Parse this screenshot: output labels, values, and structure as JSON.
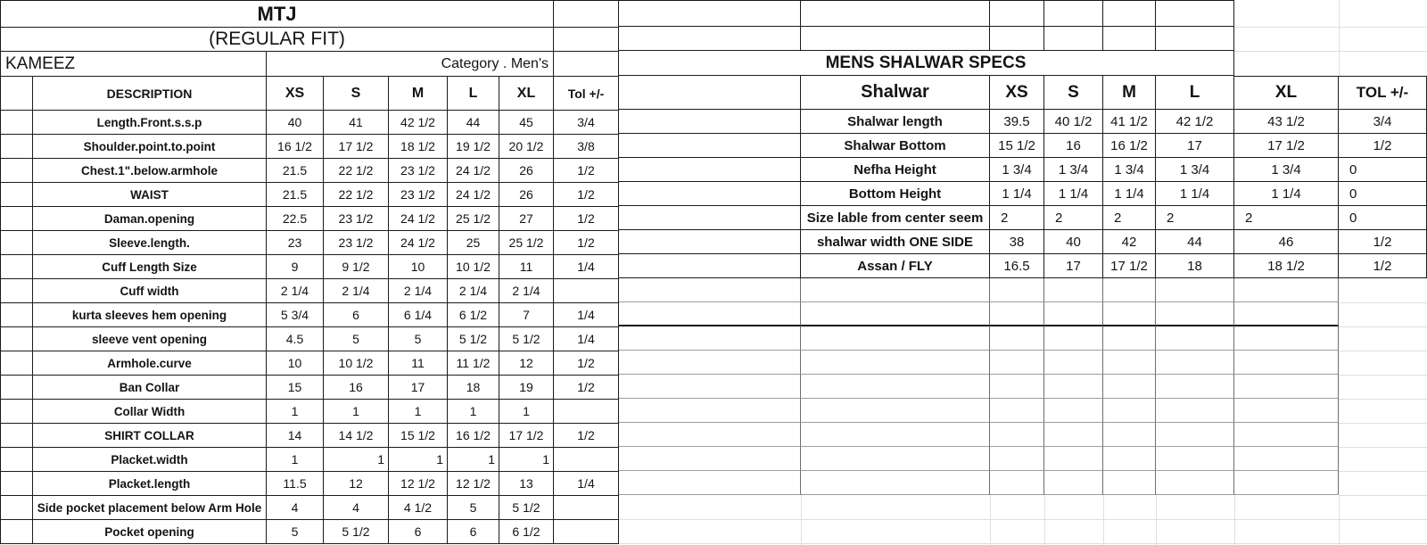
{
  "kameez_table": {
    "title": "MTJ",
    "fit_line": "(REGULAR FIT)",
    "garment_name": "KAMEEZ",
    "category_line": "Category .  Men's",
    "col_headers": [
      "DESCRIPTION",
      "XS",
      "S",
      "M",
      "L",
      "XL",
      "Tol +/-"
    ],
    "rows": [
      {
        "label": "Length.Front.s.s.p",
        "values": [
          "40",
          "41",
          "42 1/2",
          "44",
          "45"
        ],
        "tol": "3/4"
      },
      {
        "label": "Shoulder.point.to.point",
        "values": [
          "16 1/2",
          "17 1/2",
          "18 1/2",
          "19 1/2",
          "20 1/2"
        ],
        "tol": "3/8"
      },
      {
        "label": "Chest.1\".below.armhole",
        "values": [
          "21.5",
          "22 1/2",
          "23 1/2",
          "24 1/2",
          "26"
        ],
        "tol": "1/2"
      },
      {
        "label": "WAIST",
        "values": [
          "21.5",
          "22 1/2",
          "23 1/2",
          "24 1/2",
          "26"
        ],
        "tol": "1/2"
      },
      {
        "label": "Daman.opening",
        "values": [
          "22.5",
          "23 1/2",
          "24 1/2",
          "25 1/2",
          "27"
        ],
        "tol": "1/2"
      },
      {
        "label": "Sleeve.length.",
        "values": [
          "23",
          "23 1/2",
          "24 1/2",
          "25",
          "25 1/2"
        ],
        "tol": "1/2"
      },
      {
        "label": "Cuff Length Size",
        "values": [
          "9",
          "9 1/2",
          "10",
          "10 1/2",
          "11"
        ],
        "tol": "1/4"
      },
      {
        "label": "Cuff width",
        "values": [
          "2 1/4",
          "2 1/4",
          "2 1/4",
          "2 1/4",
          "2 1/4"
        ],
        "tol": ""
      },
      {
        "label": "kurta sleeves hem opening",
        "values": [
          "5 3/4",
          "6",
          "6 1/4",
          "6 1/2",
          "7"
        ],
        "tol": "1/4"
      },
      {
        "label": "sleeve vent opening",
        "values": [
          "4.5",
          "5",
          "5",
          "5 1/2",
          "5 1/2"
        ],
        "tol": "1/4"
      },
      {
        "label": "Armhole.curve",
        "values": [
          "10",
          "10 1/2",
          "11",
          "11 1/2",
          "12"
        ],
        "tol": "1/2"
      },
      {
        "label": "Ban Collar",
        "values": [
          "15",
          "16",
          "17",
          "18",
          "19"
        ],
        "tol": "1/2"
      },
      {
        "label": "Collar Width",
        "values": [
          "1",
          "1",
          "1",
          "1",
          "1"
        ],
        "tol": ""
      },
      {
        "label": "SHIRT COLLAR",
        "values": [
          "14",
          "14 1/2",
          "15 1/2",
          "16 1/2",
          "17 1/2"
        ],
        "tol": "1/2"
      },
      {
        "label": "Placket.width",
        "values": [
          "1",
          "1",
          "1",
          "1",
          "1"
        ],
        "tol": "",
        "value_align": [
          "center",
          "right",
          "right",
          "right",
          "right"
        ]
      },
      {
        "label": "Placket.length",
        "values": [
          "11.5",
          "12",
          "12 1/2",
          "12 1/2",
          "13"
        ],
        "tol": "1/4"
      },
      {
        "label": "Side pocket placement below Arm Hole",
        "values": [
          "4",
          "4",
          "4 1/2",
          "5",
          "5 1/2"
        ],
        "tol": ""
      },
      {
        "label": "Pocket opening",
        "values": [
          "5",
          "5 1/2",
          "6",
          "6",
          "6 1/2"
        ],
        "tol": ""
      }
    ]
  },
  "shalwar_table": {
    "title": "MENS SHALWAR SPECS",
    "col_headers": [
      "Shalwar",
      "XS",
      "S",
      "M",
      "L",
      "XL",
      "TOL +/-"
    ],
    "rows": [
      {
        "label": "Shalwar length",
        "values": [
          "39.5",
          "40 1/2",
          "41 1/2",
          "42 1/2",
          "43 1/2"
        ],
        "tol": "3/4"
      },
      {
        "label": "Shalwar Bottom",
        "values": [
          "15 1/2",
          "16",
          "16 1/2",
          "17",
          "17 1/2"
        ],
        "tol": "1/2"
      },
      {
        "label": "Nefha Height",
        "values": [
          "1 3/4",
          "1 3/4",
          "1 3/4",
          "1 3/4",
          "1 3/4"
        ],
        "tol": "0",
        "tol_align": "left"
      },
      {
        "label": "Bottom Height",
        "values": [
          "1 1/4",
          "1 1/4",
          "1 1/4",
          "1 1/4",
          "1 1/4"
        ],
        "tol": "0",
        "tol_align": "left"
      },
      {
        "label": "Size lable from center seem",
        "values": [
          "2",
          "2",
          "2",
          "2",
          "2"
        ],
        "tol": "0",
        "value_align": [
          "left",
          "left",
          "left",
          "left",
          "left"
        ],
        "tol_align": "left"
      },
      {
        "label": "shalwar width ONE SIDE",
        "values": [
          "38",
          "40",
          "42",
          "44",
          "46"
        ],
        "tol": "1/2"
      },
      {
        "label": "Assan / FLY",
        "values": [
          "16.5",
          "17",
          "17 1/2",
          "18",
          "18 1/2"
        ],
        "tol": "1/2"
      }
    ]
  },
  "colors": {
    "table_border": "#1b1b1b",
    "extended_grid_line": "#8a8a8a",
    "faint_grid_line": "#dedede",
    "text": "#141414",
    "background": "#ffffff"
  }
}
